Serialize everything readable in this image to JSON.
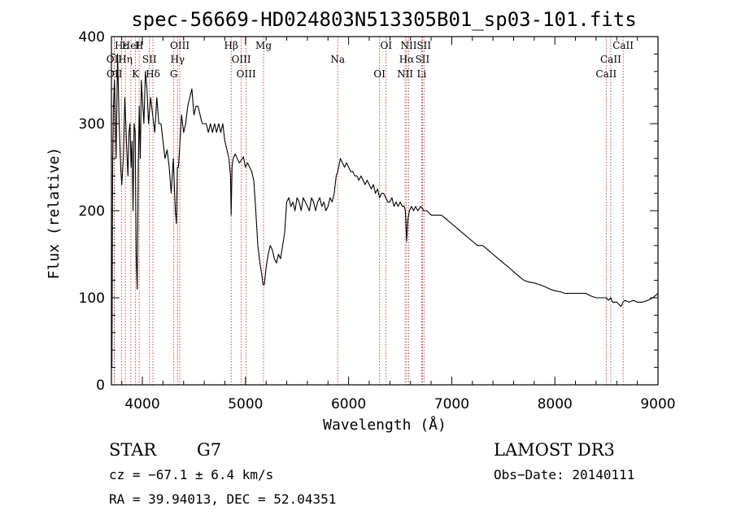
{
  "chart_data": {
    "type": "line",
    "title": "spec-56669-HD024803N513305B01_sp03-101.fits",
    "xlabel": "Wavelength (Å)",
    "ylabel": "Flux (relative)",
    "xlim": [
      3700,
      9000
    ],
    "ylim": [
      0,
      400
    ],
    "x_ticks": [
      4000,
      5000,
      6000,
      7000,
      8000,
      9000
    ],
    "y_ticks": [
      0,
      100,
      200,
      300,
      400
    ],
    "series": [
      {
        "name": "spectrum",
        "x": [
          3700,
          3705,
          3712,
          3720,
          3730,
          3745,
          3760,
          3775,
          3790,
          3800,
          3815,
          3830,
          3845,
          3860,
          3870,
          3880,
          3890,
          3900,
          3910,
          3920,
          3930,
          3940,
          3950,
          3960,
          3970,
          3980,
          3990,
          4000,
          4015,
          4030,
          4045,
          4060,
          4080,
          4100,
          4120,
          4140,
          4160,
          4180,
          4200,
          4220,
          4240,
          4260,
          4280,
          4300,
          4310,
          4320,
          4330,
          4340,
          4350,
          4360,
          4380,
          4400,
          4420,
          4440,
          4460,
          4480,
          4500,
          4520,
          4540,
          4560,
          4580,
          4600,
          4620,
          4640,
          4660,
          4680,
          4700,
          4720,
          4740,
          4760,
          4780,
          4800,
          4820,
          4840,
          4855,
          4861,
          4870,
          4880,
          4900,
          4920,
          4940,
          4960,
          4980,
          5000,
          5020,
          5040,
          5060,
          5080,
          5100,
          5120,
          5140,
          5160,
          5170,
          5183,
          5200,
          5220,
          5240,
          5260,
          5280,
          5300,
          5320,
          5340,
          5360,
          5380,
          5400,
          5420,
          5440,
          5460,
          5480,
          5500,
          5520,
          5540,
          5560,
          5580,
          5600,
          5620,
          5640,
          5660,
          5680,
          5700,
          5720,
          5740,
          5760,
          5780,
          5800,
          5820,
          5840,
          5860,
          5880,
          5895,
          5920,
          5940,
          5960,
          5980,
          6000,
          6020,
          6040,
          6060,
          6080,
          6100,
          6120,
          6140,
          6160,
          6180,
          6200,
          6220,
          6240,
          6260,
          6280,
          6300,
          6320,
          6340,
          6360,
          6380,
          6400,
          6420,
          6440,
          6460,
          6480,
          6500,
          6520,
          6540,
          6550,
          6563,
          6575,
          6590,
          6610,
          6630,
          6650,
          6670,
          6700,
          6730,
          6760,
          6800,
          6850,
          6900,
          6950,
          7000,
          7050,
          7100,
          7150,
          7200,
          7250,
          7300,
          7350,
          7400,
          7450,
          7500,
          7550,
          7600,
          7650,
          7700,
          7750,
          7800,
          7850,
          7900,
          7950,
          8000,
          8050,
          8100,
          8150,
          8200,
          8250,
          8300,
          8350,
          8400,
          8450,
          8500,
          8520,
          8542,
          8560,
          8600,
          8640,
          8662,
          8680,
          8720,
          8760,
          8800,
          8850,
          8900,
          8950,
          9000
        ],
        "values": [
          60,
          20,
          250,
          320,
          350,
          260,
          380,
          300,
          250,
          230,
          260,
          330,
          280,
          240,
          290,
          300,
          250,
          280,
          200,
          300,
          290,
          150,
          110,
          250,
          320,
          260,
          350,
          330,
          300,
          360,
          340,
          300,
          330,
          310,
          290,
          330,
          300,
          300,
          280,
          260,
          270,
          250,
          220,
          260,
          230,
          200,
          185,
          250,
          250,
          270,
          310,
          290,
          300,
          320,
          330,
          340,
          310,
          320,
          320,
          310,
          300,
          300,
          300,
          290,
          300,
          290,
          300,
          290,
          300,
          290,
          300,
          280,
          270,
          260,
          240,
          195,
          250,
          260,
          265,
          260,
          255,
          258,
          262,
          250,
          255,
          250,
          245,
          235,
          200,
          160,
          140,
          125,
          115,
          115,
          135,
          150,
          160,
          155,
          145,
          140,
          150,
          145,
          160,
          175,
          210,
          215,
          205,
          210,
          200,
          215,
          210,
          200,
          215,
          210,
          205,
          200,
          215,
          210,
          200,
          210,
          215,
          205,
          210,
          200,
          205,
          215,
          210,
          220,
          240,
          245,
          260,
          255,
          250,
          255,
          250,
          245,
          245,
          240,
          240,
          235,
          240,
          235,
          230,
          235,
          230,
          225,
          230,
          220,
          225,
          215,
          220,
          220,
          215,
          210,
          210,
          215,
          205,
          210,
          205,
          210,
          205,
          205,
          200,
          165,
          190,
          200,
          205,
          200,
          205,
          200,
          205,
          200,
          200,
          195,
          195,
          195,
          190,
          185,
          180,
          175,
          170,
          165,
          160,
          160,
          155,
          150,
          145,
          140,
          135,
          130,
          125,
          120,
          118,
          117,
          115,
          113,
          110,
          108,
          107,
          105,
          105,
          105,
          105,
          105,
          102,
          100,
          100,
          100,
          97,
          100,
          95,
          95,
          90,
          95,
          97,
          95,
          97,
          95,
          95,
          97,
          100,
          105
        ]
      }
    ],
    "spectral_lines": [
      {
        "label": "Hε",
        "x": 3797
      },
      {
        "label": "OII",
        "x": 3727
      },
      {
        "label": "OII",
        "x": 3729
      },
      {
        "label": "HeI",
        "x": 3889
      },
      {
        "label": "Hη",
        "x": 3835
      },
      {
        "label": "K",
        "x": 3934
      },
      {
        "label": "H",
        "x": 3969
      },
      {
        "label": "SII",
        "x": 4069
      },
      {
        "label": "Hδ",
        "x": 4102
      },
      {
        "label": "OIII",
        "x": 4363
      },
      {
        "label": "Hγ",
        "x": 4341
      },
      {
        "label": "G",
        "x": 4305
      },
      {
        "label": "Hβ",
        "x": 4861
      },
      {
        "label": "OIII",
        "x": 4959
      },
      {
        "label": "OIII",
        "x": 5007
      },
      {
        "label": "Mg",
        "x": 5175
      },
      {
        "label": "Na",
        "x": 5894
      },
      {
        "label": "OI",
        "x": 6300
      },
      {
        "label": "OI",
        "x": 6364
      },
      {
        "label": "Hα",
        "x": 6563
      },
      {
        "label": "NII",
        "x": 6548
      },
      {
        "label": "NII",
        "x": 6583
      },
      {
        "label": "SII",
        "x": 6716
      },
      {
        "label": "Li",
        "x": 6708
      },
      {
        "label": "SII",
        "x": 6731
      },
      {
        "label": "CaII",
        "x": 8542
      },
      {
        "label": "CaII",
        "x": 8498
      },
      {
        "label": "CaII",
        "x": 8662
      }
    ]
  },
  "info": {
    "class_label": "STAR",
    "subclass": "G7",
    "survey": "LAMOST DR3",
    "cz_line": "cz = −67.1 ± 6.4 km/s",
    "obs_date": "Obs−Date: 20140111",
    "radec_line": "RA =  39.94013, DEC =  52.04351"
  },
  "colors": {
    "spectrum": "#000000",
    "line_marker": "#b22222",
    "axis": "#000000"
  }
}
